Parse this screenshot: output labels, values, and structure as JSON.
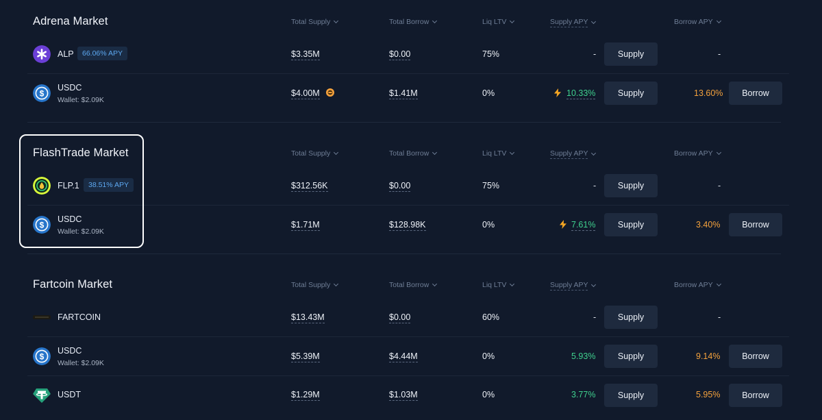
{
  "columns": {
    "total_supply": "Total Supply",
    "total_borrow": "Total Borrow",
    "liq_ltv": "Liq LTV",
    "supply_apy": "Supply APY",
    "borrow_apy": "Borrow APY"
  },
  "markets": [
    {
      "title": "Adrena Market",
      "rows": [
        {
          "asset": "ALP",
          "badge": "66.06% APY",
          "wallet": "",
          "total_supply": "$3.35M",
          "total_borrow": "$0.00",
          "liq_ltv": "75%",
          "supply_apy": "-",
          "borrow_apy": "-",
          "supply_label": "Supply",
          "borrow_label": "",
          "icon": "alp-icon"
        },
        {
          "asset": "USDC",
          "badge": "",
          "wallet": "Wallet: $2.09K",
          "total_supply": "$4.00M",
          "total_borrow": "$1.41M",
          "liq_ltv": "0%",
          "supply_apy": "10.33%",
          "borrow_apy": "13.60%",
          "supply_label": "Supply",
          "borrow_label": "Borrow",
          "icon": "usdc-icon"
        }
      ]
    },
    {
      "title": "FlashTrade Market",
      "rows": [
        {
          "asset": "FLP.1",
          "badge": "38.51% APY",
          "wallet": "",
          "total_supply": "$312.56K",
          "total_borrow": "$0.00",
          "liq_ltv": "75%",
          "supply_apy": "-",
          "borrow_apy": "-",
          "supply_label": "Supply",
          "borrow_label": "",
          "icon": "flp-icon"
        },
        {
          "asset": "USDC",
          "badge": "",
          "wallet": "Wallet: $2.09K",
          "total_supply": "$1.71M",
          "total_borrow": "$128.98K",
          "liq_ltv": "0%",
          "supply_apy": "7.61%",
          "borrow_apy": "3.40%",
          "supply_label": "Supply",
          "borrow_label": "Borrow",
          "icon": "usdc-icon"
        }
      ]
    },
    {
      "title": "Fartcoin Market",
      "rows": [
        {
          "asset": "FARTCOIN",
          "badge": "",
          "wallet": "",
          "total_supply": "$13.43M",
          "total_borrow": "$0.00",
          "liq_ltv": "60%",
          "supply_apy": "-",
          "borrow_apy": "-",
          "supply_label": "Supply",
          "borrow_label": "",
          "icon": "fartcoin-icon"
        },
        {
          "asset": "USDC",
          "badge": "",
          "wallet": "Wallet: $2.09K",
          "total_supply": "$5.39M",
          "total_borrow": "$4.44M",
          "liq_ltv": "0%",
          "supply_apy": "5.93%",
          "borrow_apy": "9.14%",
          "supply_label": "Supply",
          "borrow_label": "Borrow",
          "icon": "usdc-icon"
        },
        {
          "asset": "USDT",
          "badge": "",
          "wallet": "",
          "total_supply": "$1.29M",
          "total_borrow": "$1.03M",
          "liq_ltv": "0%",
          "supply_apy": "3.77%",
          "borrow_apy": "5.95%",
          "supply_label": "Supply",
          "borrow_label": "Borrow",
          "icon": "usdt-icon"
        }
      ]
    }
  ],
  "colors": {
    "background": "#111a2b",
    "apy_green": "#3fd18e",
    "borrow_orange": "#f5a23d",
    "button_bg": "#1e2a3e",
    "badge_text": "#5da8f0"
  }
}
